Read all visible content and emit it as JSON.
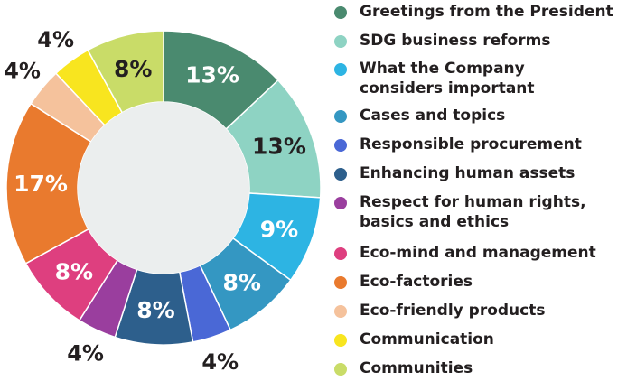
{
  "chart_data": {
    "type": "pie",
    "categories": [
      "Greetings from the President",
      "SDG business reforms",
      "What the Company\nconsiders important",
      "Cases and topics",
      "Responsible procurement",
      "Enhancing human assets",
      "Respect for human rights,\nbasics and ethics",
      "Eco-mind and management",
      "Eco-factories",
      "Eco-friendly products",
      "Communication",
      "Communities"
    ],
    "values": [
      13,
      13,
      9,
      8,
      4,
      8,
      4,
      8,
      17,
      4,
      4,
      8
    ],
    "value_labels": [
      "13%",
      "13%",
      "9%",
      "8%",
      "4%",
      "8%",
      "4%",
      "8%",
      "17%",
      "4%",
      "4%",
      "8%"
    ],
    "colors": [
      "#4a8a6f",
      "#8ed3c3",
      "#2db4e3",
      "#3497c2",
      "#4a68d6",
      "#2d5f8c",
      "#9a3e9e",
      "#de3f7f",
      "#e97a2e",
      "#f5c29c",
      "#f8e51f",
      "#c9dc68"
    ],
    "legend": "right",
    "grid": false
  }
}
